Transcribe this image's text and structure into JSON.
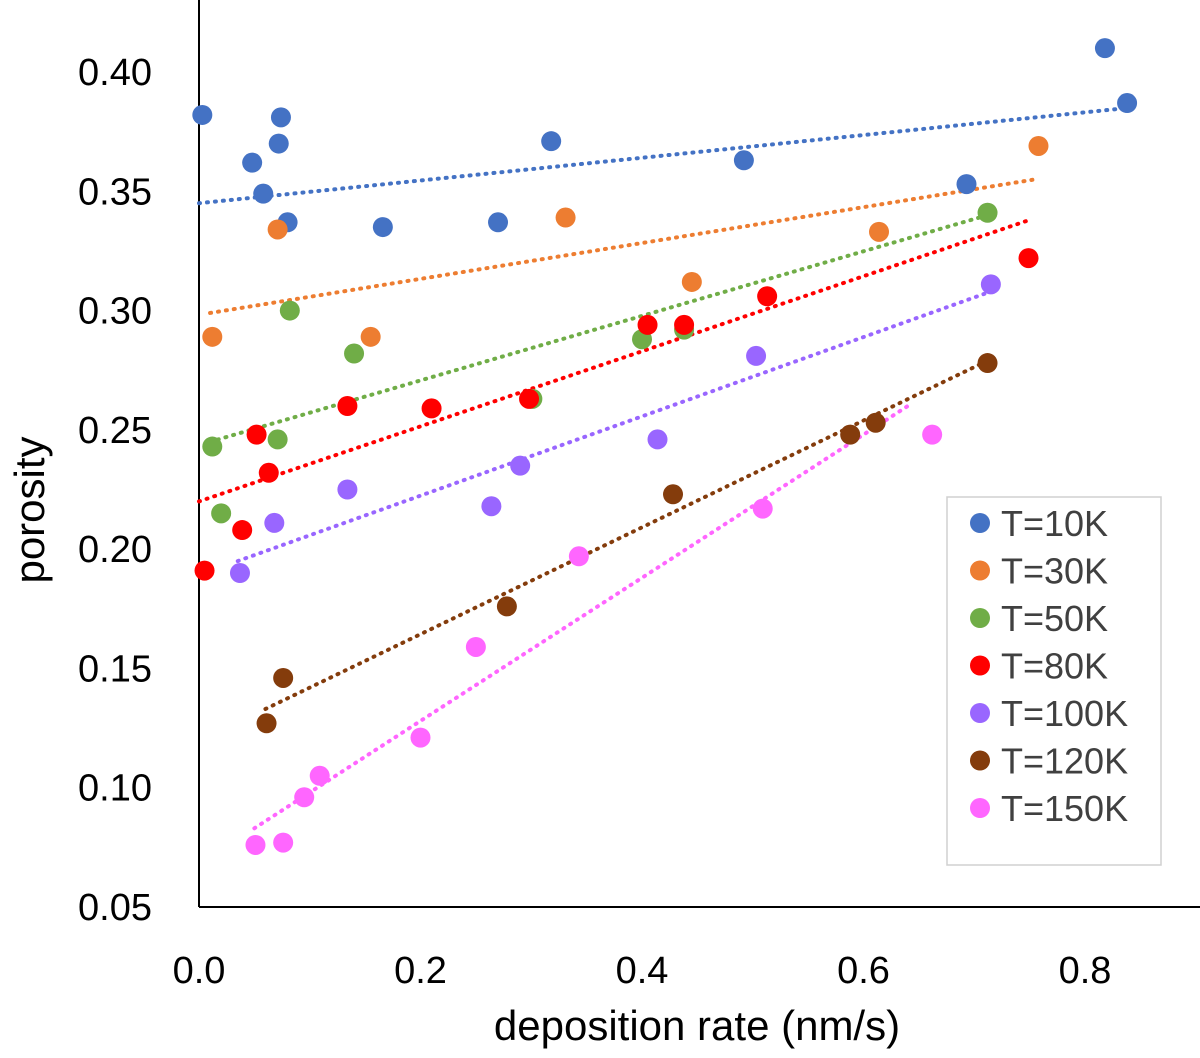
{
  "chart_data": {
    "type": "scatter",
    "title": "",
    "xlabel": "deposition rate (nm/s)",
    "ylabel": "porosity",
    "xlim": [
      0.0,
      0.9
    ],
    "ylim": [
      0.05,
      0.43
    ],
    "x_ticks": [
      "0.0",
      "0.2",
      "0.4",
      "0.6",
      "0.8"
    ],
    "y_ticks": [
      "0.05",
      "0.10",
      "0.15",
      "0.20",
      "0.25",
      "0.30",
      "0.35",
      "0.40"
    ],
    "legend_position": "bottom-right",
    "trendlines": "linear, dotted",
    "series": [
      {
        "name": "T=10K",
        "color": "#4472c4",
        "points": [
          [
            0.003,
            0.382
          ],
          [
            0.048,
            0.362
          ],
          [
            0.058,
            0.349
          ],
          [
            0.072,
            0.37
          ],
          [
            0.074,
            0.381
          ],
          [
            0.08,
            0.337
          ],
          [
            0.166,
            0.335
          ],
          [
            0.27,
            0.337
          ],
          [
            0.318,
            0.371
          ],
          [
            0.492,
            0.363
          ],
          [
            0.693,
            0.353
          ],
          [
            0.818,
            0.41
          ],
          [
            0.838,
            0.387
          ]
        ],
        "trend": [
          [
            0.0,
            0.345
          ],
          [
            0.84,
            0.385
          ]
        ]
      },
      {
        "name": "T=30K",
        "color": "#ed7d31",
        "points": [
          [
            0.012,
            0.289
          ],
          [
            0.071,
            0.334
          ],
          [
            0.155,
            0.289
          ],
          [
            0.331,
            0.339
          ],
          [
            0.445,
            0.312
          ],
          [
            0.614,
            0.333
          ],
          [
            0.758,
            0.369
          ]
        ],
        "trend": [
          [
            0.01,
            0.299
          ],
          [
            0.755,
            0.355
          ]
        ]
      },
      {
        "name": "T=50K",
        "color": "#70ad47",
        "points": [
          [
            0.012,
            0.243
          ],
          [
            0.02,
            0.215
          ],
          [
            0.071,
            0.246
          ],
          [
            0.082,
            0.3
          ],
          [
            0.14,
            0.282
          ],
          [
            0.301,
            0.263
          ],
          [
            0.4,
            0.288
          ],
          [
            0.438,
            0.292
          ],
          [
            0.712,
            0.341
          ]
        ],
        "trend": [
          [
            0.01,
            0.245
          ],
          [
            0.712,
            0.34
          ]
        ]
      },
      {
        "name": "T=80K",
        "color": "#ff0000",
        "points": [
          [
            0.005,
            0.191
          ],
          [
            0.039,
            0.208
          ],
          [
            0.052,
            0.248
          ],
          [
            0.063,
            0.232
          ],
          [
            0.134,
            0.26
          ],
          [
            0.21,
            0.259
          ],
          [
            0.298,
            0.263
          ],
          [
            0.405,
            0.294
          ],
          [
            0.438,
            0.294
          ],
          [
            0.513,
            0.306
          ],
          [
            0.749,
            0.322
          ]
        ],
        "trend": [
          [
            0.0,
            0.22
          ],
          [
            0.75,
            0.338
          ]
        ]
      },
      {
        "name": "T=100K",
        "color": "#9966ff",
        "points": [
          [
            0.037,
            0.19
          ],
          [
            0.068,
            0.211
          ],
          [
            0.134,
            0.225
          ],
          [
            0.264,
            0.218
          ],
          [
            0.29,
            0.235
          ],
          [
            0.414,
            0.246
          ],
          [
            0.503,
            0.281
          ],
          [
            0.715,
            0.311
          ]
        ],
        "trend": [
          [
            0.035,
            0.195
          ],
          [
            0.715,
            0.308
          ]
        ]
      },
      {
        "name": "T=120K",
        "color": "#843c0c",
        "points": [
          [
            0.061,
            0.127
          ],
          [
            0.076,
            0.146
          ],
          [
            0.278,
            0.176
          ],
          [
            0.428,
            0.223
          ],
          [
            0.588,
            0.248
          ],
          [
            0.611,
            0.253
          ],
          [
            0.712,
            0.278
          ]
        ],
        "trend": [
          [
            0.06,
            0.133
          ],
          [
            0.712,
            0.279
          ]
        ]
      },
      {
        "name": "T=150K",
        "color": "#ff66ff",
        "points": [
          [
            0.051,
            0.076
          ],
          [
            0.076,
            0.077
          ],
          [
            0.095,
            0.096
          ],
          [
            0.109,
            0.105
          ],
          [
            0.2,
            0.121
          ],
          [
            0.25,
            0.159
          ],
          [
            0.343,
            0.197
          ],
          [
            0.509,
            0.217
          ],
          [
            0.662,
            0.248
          ]
        ],
        "trend": [
          [
            0.05,
            0.083
          ],
          [
            0.64,
            0.26
          ]
        ]
      }
    ]
  }
}
